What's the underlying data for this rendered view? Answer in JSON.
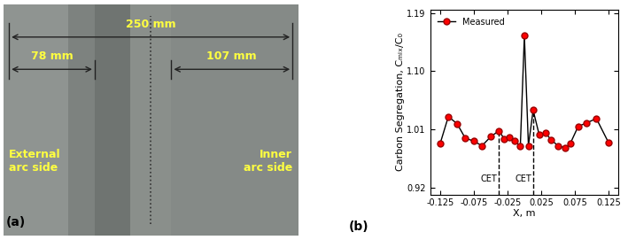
{
  "panel_a": {
    "label": "(a)",
    "dimensions": [
      "250 mm",
      "78 mm",
      "107 mm"
    ],
    "left_text": "External\narc side",
    "right_text": "Inner\narc side"
  },
  "chart_data": {
    "type": "line",
    "label": "(b)",
    "x_label": "X, m",
    "y_label": "Carbon Segregation, Cₘᵢₓ/C₀",
    "xlim": [
      -0.14,
      0.14
    ],
    "xticks": [
      -0.125,
      -0.075,
      -0.025,
      0.025,
      0.075,
      0.125
    ],
    "ylim": [
      0.91,
      1.195
    ],
    "yticks": [
      0.92,
      1.01,
      {
        "value": 1.1,
        "label": "1.10"
      },
      1.19
    ],
    "legend": "upper left",
    "series": [
      {
        "name": "Measured",
        "color": "#ff0000",
        "marker": "o",
        "line_style": "solid",
        "x": [
          -0.125,
          -0.113,
          -0.1,
          -0.088,
          -0.075,
          -0.063,
          -0.05,
          -0.038,
          -0.03,
          -0.022,
          -0.014,
          -0.006,
          0.0,
          0.006,
          0.013,
          0.022,
          0.031,
          0.04,
          0.05,
          0.06,
          0.068,
          0.08,
          0.092,
          0.107,
          0.125
        ],
        "values": [
          0.989,
          1.03,
          1.019,
          0.997,
          0.992,
          0.985,
          0.999,
          1.008,
          0.996,
          0.998,
          0.992,
          0.985,
          1.155,
          0.985,
          1.04,
          1.002,
          1.005,
          0.994,
          0.985,
          0.982,
          0.988,
          1.015,
          1.02,
          1.027,
          0.99
        ]
      }
    ],
    "annotations": [
      {
        "text": "CET",
        "x": -0.038
      },
      {
        "text": "CET",
        "x": 0.013
      }
    ]
  }
}
